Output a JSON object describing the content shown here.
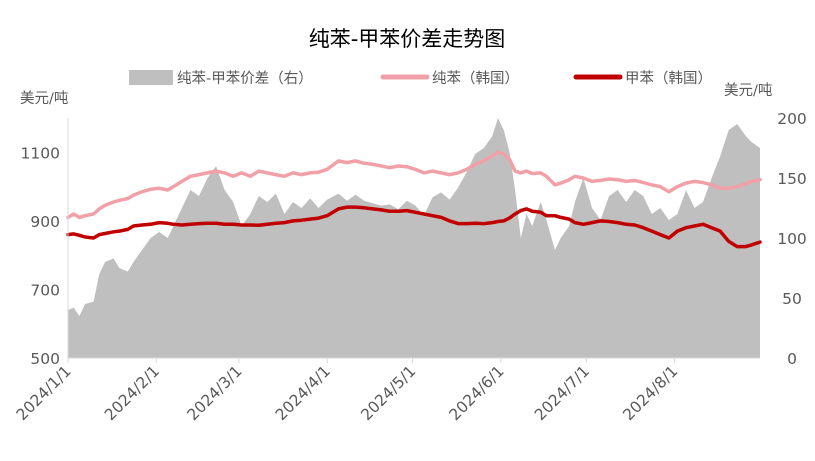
{
  "chart_data": {
    "type": "line",
    "title": "纯苯-甲苯价差走势图",
    "ylabel_left": "美元/吨",
    "ylabel_right": "美元/吨",
    "ylim_left": [
      500,
      1200
    ],
    "yticks_left": [
      500,
      700,
      900,
      1100
    ],
    "ylim_right": [
      0,
      200
    ],
    "yticks_right": [
      0,
      50,
      100,
      150,
      200
    ],
    "x_range": [
      "2024-01-01",
      "2024-08-31"
    ],
    "x_ticks": [
      "2024/1/1",
      "2024/2/1",
      "2024/3/1",
      "2024/4/1",
      "2024/5/1",
      "2024/6/1",
      "2024/7/1",
      "2024/8/1"
    ],
    "grid": false,
    "legend_position": "top",
    "series": [
      {
        "name": "纯苯-甲苯价差（右）",
        "kind": "area",
        "axis": "right",
        "color": "#bfbfbf",
        "points": [
          [
            "2024-01-01",
            40
          ],
          [
            "2024-01-03",
            42
          ],
          [
            "2024-01-05",
            35
          ],
          [
            "2024-01-07",
            45
          ],
          [
            "2024-01-10",
            47
          ],
          [
            "2024-01-12",
            70
          ],
          [
            "2024-01-14",
            80
          ],
          [
            "2024-01-17",
            83
          ],
          [
            "2024-01-19",
            75
          ],
          [
            "2024-01-22",
            72
          ],
          [
            "2024-01-24",
            80
          ],
          [
            "2024-01-27",
            90
          ],
          [
            "2024-01-30",
            100
          ],
          [
            "2024-02-02",
            105
          ],
          [
            "2024-02-05",
            100
          ],
          [
            "2024-02-07",
            110
          ],
          [
            "2024-02-10",
            125
          ],
          [
            "2024-02-13",
            140
          ],
          [
            "2024-02-16",
            135
          ],
          [
            "2024-02-19",
            150
          ],
          [
            "2024-02-22",
            160
          ],
          [
            "2024-02-25",
            140
          ],
          [
            "2024-02-28",
            130
          ],
          [
            "2024-03-02",
            110
          ],
          [
            "2024-03-05",
            120
          ],
          [
            "2024-03-08",
            135
          ],
          [
            "2024-03-11",
            130
          ],
          [
            "2024-03-14",
            137
          ],
          [
            "2024-03-17",
            120
          ],
          [
            "2024-03-20",
            130
          ],
          [
            "2024-03-23",
            125
          ],
          [
            "2024-03-26",
            133
          ],
          [
            "2024-03-29",
            125
          ],
          [
            "2024-04-01",
            132
          ],
          [
            "2024-04-05",
            137
          ],
          [
            "2024-04-08",
            131
          ],
          [
            "2024-04-11",
            136
          ],
          [
            "2024-04-14",
            131
          ],
          [
            "2024-04-17",
            129
          ],
          [
            "2024-04-20",
            127
          ],
          [
            "2024-04-23",
            128
          ],
          [
            "2024-04-26",
            124
          ],
          [
            "2024-04-29",
            131
          ],
          [
            "2024-05-02",
            127
          ],
          [
            "2024-05-05",
            119
          ],
          [
            "2024-05-08",
            134
          ],
          [
            "2024-05-11",
            138
          ],
          [
            "2024-05-14",
            132
          ],
          [
            "2024-05-17",
            142
          ],
          [
            "2024-05-20",
            155
          ],
          [
            "2024-05-23",
            170
          ],
          [
            "2024-05-26",
            175
          ],
          [
            "2024-05-29",
            185
          ],
          [
            "2024-05-31",
            200
          ],
          [
            "2024-06-02",
            190
          ],
          [
            "2024-06-04",
            172
          ],
          [
            "2024-06-06",
            140
          ],
          [
            "2024-06-08",
            100
          ],
          [
            "2024-06-10",
            120
          ],
          [
            "2024-06-12",
            110
          ],
          [
            "2024-06-15",
            130
          ],
          [
            "2024-06-17",
            115
          ],
          [
            "2024-06-20",
            90
          ],
          [
            "2024-06-22",
            100
          ],
          [
            "2024-06-25",
            110
          ],
          [
            "2024-06-27",
            130
          ],
          [
            "2024-06-30",
            150
          ],
          [
            "2024-07-03",
            125
          ],
          [
            "2024-07-06",
            115
          ],
          [
            "2024-07-09",
            135
          ],
          [
            "2024-07-12",
            140
          ],
          [
            "2024-07-15",
            130
          ],
          [
            "2024-07-18",
            140
          ],
          [
            "2024-07-21",
            135
          ],
          [
            "2024-07-24",
            120
          ],
          [
            "2024-07-27",
            125
          ],
          [
            "2024-07-30",
            115
          ],
          [
            "2024-08-02",
            120
          ],
          [
            "2024-08-05",
            140
          ],
          [
            "2024-08-08",
            125
          ],
          [
            "2024-08-11",
            130
          ],
          [
            "2024-08-14",
            150
          ],
          [
            "2024-08-17",
            168
          ],
          [
            "2024-08-20",
            190
          ],
          [
            "2024-08-23",
            195
          ],
          [
            "2024-08-26",
            185
          ],
          [
            "2024-08-28",
            180
          ],
          [
            "2024-08-31",
            175
          ]
        ]
      },
      {
        "name": "纯苯（韩国）",
        "kind": "line",
        "axis": "left",
        "color": "#f2a0a8",
        "points": [
          [
            "2024-01-01",
            910
          ],
          [
            "2024-01-03",
            920
          ],
          [
            "2024-01-05",
            910
          ],
          [
            "2024-01-07",
            915
          ],
          [
            "2024-01-10",
            920
          ],
          [
            "2024-01-12",
            935
          ],
          [
            "2024-01-14",
            945
          ],
          [
            "2024-01-17",
            955
          ],
          [
            "2024-01-19",
            960
          ],
          [
            "2024-01-22",
            965
          ],
          [
            "2024-01-24",
            975
          ],
          [
            "2024-01-27",
            985
          ],
          [
            "2024-01-30",
            992
          ],
          [
            "2024-02-02",
            995
          ],
          [
            "2024-02-05",
            990
          ],
          [
            "2024-02-07",
            1000
          ],
          [
            "2024-02-10",
            1015
          ],
          [
            "2024-02-13",
            1030
          ],
          [
            "2024-02-16",
            1035
          ],
          [
            "2024-02-19",
            1040
          ],
          [
            "2024-02-22",
            1045
          ],
          [
            "2024-02-25",
            1040
          ],
          [
            "2024-02-28",
            1030
          ],
          [
            "2024-03-02",
            1040
          ],
          [
            "2024-03-05",
            1030
          ],
          [
            "2024-03-08",
            1045
          ],
          [
            "2024-03-11",
            1040
          ],
          [
            "2024-03-14",
            1035
          ],
          [
            "2024-03-17",
            1030
          ],
          [
            "2024-03-20",
            1040
          ],
          [
            "2024-03-23",
            1035
          ],
          [
            "2024-03-26",
            1040
          ],
          [
            "2024-03-29",
            1042
          ],
          [
            "2024-04-01",
            1050
          ],
          [
            "2024-04-05",
            1075
          ],
          [
            "2024-04-08",
            1070
          ],
          [
            "2024-04-11",
            1075
          ],
          [
            "2024-04-14",
            1068
          ],
          [
            "2024-04-17",
            1065
          ],
          [
            "2024-04-20",
            1060
          ],
          [
            "2024-04-23",
            1055
          ],
          [
            "2024-04-26",
            1060
          ],
          [
            "2024-04-29",
            1058
          ],
          [
            "2024-05-02",
            1050
          ],
          [
            "2024-05-05",
            1040
          ],
          [
            "2024-05-08",
            1045
          ],
          [
            "2024-05-11",
            1040
          ],
          [
            "2024-05-14",
            1035
          ],
          [
            "2024-05-17",
            1040
          ],
          [
            "2024-05-20",
            1050
          ],
          [
            "2024-05-23",
            1065
          ],
          [
            "2024-05-26",
            1075
          ],
          [
            "2024-05-29",
            1090
          ],
          [
            "2024-05-31",
            1100
          ],
          [
            "2024-06-02",
            1095
          ],
          [
            "2024-06-04",
            1080
          ],
          [
            "2024-06-06",
            1045
          ],
          [
            "2024-06-08",
            1040
          ],
          [
            "2024-06-10",
            1045
          ],
          [
            "2024-06-12",
            1038
          ],
          [
            "2024-06-15",
            1040
          ],
          [
            "2024-06-17",
            1030
          ],
          [
            "2024-06-20",
            1005
          ],
          [
            "2024-06-22",
            1010
          ],
          [
            "2024-06-25",
            1020
          ],
          [
            "2024-06-27",
            1030
          ],
          [
            "2024-06-30",
            1025
          ],
          [
            "2024-07-03",
            1015
          ],
          [
            "2024-07-06",
            1018
          ],
          [
            "2024-07-09",
            1022
          ],
          [
            "2024-07-12",
            1020
          ],
          [
            "2024-07-15",
            1015
          ],
          [
            "2024-07-18",
            1018
          ],
          [
            "2024-07-21",
            1012
          ],
          [
            "2024-07-24",
            1005
          ],
          [
            "2024-07-27",
            1000
          ],
          [
            "2024-07-30",
            985
          ],
          [
            "2024-08-02",
            1000
          ],
          [
            "2024-08-05",
            1010
          ],
          [
            "2024-08-08",
            1015
          ],
          [
            "2024-08-11",
            1012
          ],
          [
            "2024-08-14",
            1005
          ],
          [
            "2024-08-17",
            995
          ],
          [
            "2024-08-20",
            995
          ],
          [
            "2024-08-23",
            1000
          ],
          [
            "2024-08-26",
            1008
          ],
          [
            "2024-08-28",
            1015
          ],
          [
            "2024-08-31",
            1020
          ]
        ]
      },
      {
        "name": "甲苯（韩国）",
        "kind": "line",
        "axis": "left",
        "color": "#c00000",
        "points": [
          [
            "2024-01-01",
            860
          ],
          [
            "2024-01-03",
            862
          ],
          [
            "2024-01-05",
            858
          ],
          [
            "2024-01-07",
            853
          ],
          [
            "2024-01-10",
            850
          ],
          [
            "2024-01-12",
            860
          ],
          [
            "2024-01-14",
            863
          ],
          [
            "2024-01-17",
            868
          ],
          [
            "2024-01-19",
            870
          ],
          [
            "2024-01-22",
            875
          ],
          [
            "2024-01-24",
            885
          ],
          [
            "2024-01-27",
            888
          ],
          [
            "2024-01-30",
            890
          ],
          [
            "2024-02-02",
            895
          ],
          [
            "2024-02-05",
            893
          ],
          [
            "2024-02-07",
            890
          ],
          [
            "2024-02-10",
            888
          ],
          [
            "2024-02-13",
            890
          ],
          [
            "2024-02-16",
            892
          ],
          [
            "2024-02-19",
            893
          ],
          [
            "2024-02-22",
            893
          ],
          [
            "2024-02-25",
            890
          ],
          [
            "2024-02-28",
            890
          ],
          [
            "2024-03-02",
            888
          ],
          [
            "2024-03-05",
            888
          ],
          [
            "2024-03-08",
            887
          ],
          [
            "2024-03-11",
            890
          ],
          [
            "2024-03-14",
            893
          ],
          [
            "2024-03-17",
            895
          ],
          [
            "2024-03-20",
            900
          ],
          [
            "2024-03-23",
            902
          ],
          [
            "2024-03-26",
            905
          ],
          [
            "2024-03-29",
            908
          ],
          [
            "2024-04-01",
            915
          ],
          [
            "2024-04-05",
            935
          ],
          [
            "2024-04-08",
            940
          ],
          [
            "2024-04-11",
            940
          ],
          [
            "2024-04-14",
            938
          ],
          [
            "2024-04-17",
            935
          ],
          [
            "2024-04-20",
            932
          ],
          [
            "2024-04-23",
            928
          ],
          [
            "2024-04-26",
            928
          ],
          [
            "2024-04-29",
            930
          ],
          [
            "2024-05-02",
            925
          ],
          [
            "2024-05-05",
            920
          ],
          [
            "2024-05-08",
            915
          ],
          [
            "2024-05-11",
            910
          ],
          [
            "2024-05-14",
            900
          ],
          [
            "2024-05-17",
            892
          ],
          [
            "2024-05-20",
            892
          ],
          [
            "2024-05-23",
            893
          ],
          [
            "2024-05-26",
            892
          ],
          [
            "2024-05-29",
            895
          ],
          [
            "2024-05-31",
            898
          ],
          [
            "2024-06-02",
            900
          ],
          [
            "2024-06-04",
            908
          ],
          [
            "2024-06-06",
            920
          ],
          [
            "2024-06-08",
            930
          ],
          [
            "2024-06-10",
            935
          ],
          [
            "2024-06-12",
            928
          ],
          [
            "2024-06-15",
            925
          ],
          [
            "2024-06-17",
            915
          ],
          [
            "2024-06-20",
            915
          ],
          [
            "2024-06-22",
            910
          ],
          [
            "2024-06-25",
            905
          ],
          [
            "2024-06-27",
            895
          ],
          [
            "2024-06-30",
            890
          ],
          [
            "2024-07-03",
            895
          ],
          [
            "2024-07-06",
            900
          ],
          [
            "2024-07-09",
            898
          ],
          [
            "2024-07-12",
            895
          ],
          [
            "2024-07-15",
            890
          ],
          [
            "2024-07-18",
            888
          ],
          [
            "2024-07-21",
            880
          ],
          [
            "2024-07-24",
            870
          ],
          [
            "2024-07-27",
            860
          ],
          [
            "2024-07-30",
            850
          ],
          [
            "2024-08-02",
            870
          ],
          [
            "2024-08-05",
            880
          ],
          [
            "2024-08-08",
            885
          ],
          [
            "2024-08-11",
            890
          ],
          [
            "2024-08-14",
            880
          ],
          [
            "2024-08-17",
            870
          ],
          [
            "2024-08-20",
            840
          ],
          [
            "2024-08-23",
            825
          ],
          [
            "2024-08-26",
            825
          ],
          [
            "2024-08-28",
            830
          ],
          [
            "2024-08-31",
            838
          ]
        ]
      }
    ]
  }
}
